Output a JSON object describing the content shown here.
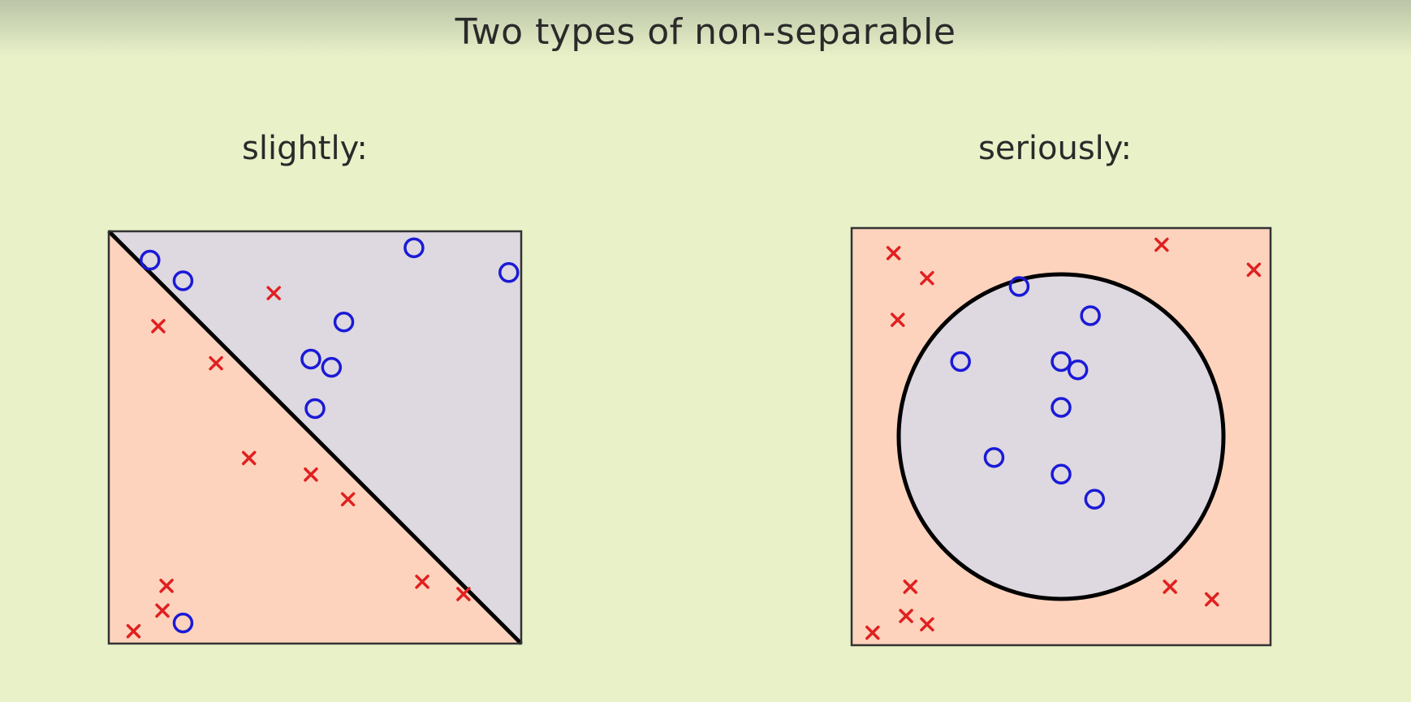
{
  "slide": {
    "title": "Two types of non-separable",
    "left_caption": "slightly:",
    "right_caption": "seriously:"
  },
  "colors": {
    "background": "#e8f1c8",
    "positive_region": "#ded8e0",
    "negative_region": "#fdd3bd",
    "circle_marker": "#1a1ad6",
    "cross_marker": "#e02020",
    "boundary": "#000000"
  },
  "panels": [
    {
      "id": "slightly",
      "boundary": "diagonal line",
      "circles": [
        [
          0.1,
          0.93
        ],
        [
          0.18,
          0.88
        ],
        [
          0.74,
          0.96
        ],
        [
          0.97,
          0.9
        ],
        [
          0.57,
          0.78
        ],
        [
          0.49,
          0.69
        ],
        [
          0.54,
          0.67
        ],
        [
          0.5,
          0.57
        ],
        [
          0.18,
          0.05
        ]
      ],
      "crosses": [
        [
          0.4,
          0.85
        ],
        [
          0.12,
          0.77
        ],
        [
          0.26,
          0.68
        ],
        [
          0.34,
          0.45
        ],
        [
          0.49,
          0.41
        ],
        [
          0.58,
          0.35
        ],
        [
          0.14,
          0.14
        ],
        [
          0.13,
          0.08
        ],
        [
          0.06,
          0.03
        ],
        [
          0.76,
          0.15
        ],
        [
          0.86,
          0.12
        ]
      ]
    },
    {
      "id": "seriously",
      "boundary": "circle",
      "circles": [
        [
          0.4,
          0.86
        ],
        [
          0.57,
          0.79
        ],
        [
          0.26,
          0.68
        ],
        [
          0.5,
          0.68
        ],
        [
          0.54,
          0.66
        ],
        [
          0.5,
          0.57
        ],
        [
          0.34,
          0.45
        ],
        [
          0.5,
          0.41
        ],
        [
          0.58,
          0.35
        ]
      ],
      "crosses": [
        [
          0.1,
          0.94
        ],
        [
          0.18,
          0.88
        ],
        [
          0.11,
          0.78
        ],
        [
          0.74,
          0.96
        ],
        [
          0.96,
          0.9
        ],
        [
          0.14,
          0.14
        ],
        [
          0.13,
          0.07
        ],
        [
          0.18,
          0.05
        ],
        [
          0.05,
          0.03
        ],
        [
          0.76,
          0.14
        ],
        [
          0.86,
          0.11
        ]
      ]
    }
  ]
}
